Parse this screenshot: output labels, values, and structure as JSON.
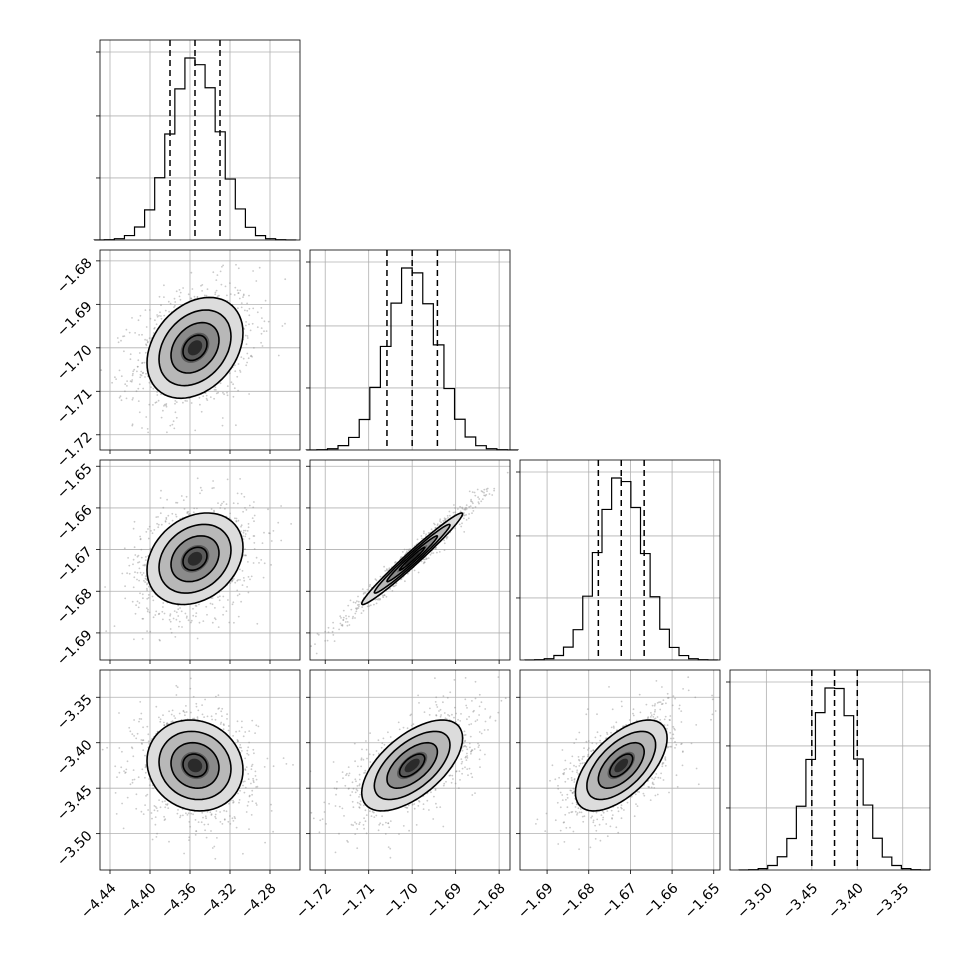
{
  "chart_data": {
    "type": "corner",
    "grid": true,
    "parameters": [
      {
        "ticks": [
          -4.44,
          -4.4,
          -4.36,
          -4.32,
          -4.28
        ],
        "tick_labels": [
          "−4.44",
          "−4.40",
          "−4.36",
          "−4.32",
          "−4.28"
        ],
        "range": [
          -4.45,
          -4.25
        ],
        "mean": -4.355,
        "sigma": 0.024,
        "quantiles": [
          -4.38,
          -4.355,
          -4.33
        ]
      },
      {
        "ticks": [
          -1.72,
          -1.71,
          -1.7,
          -1.69,
          -1.68
        ],
        "tick_labels": [
          "−1.72",
          "−1.71",
          "−1.70",
          "−1.69",
          "−1.68"
        ],
        "range": [
          -1.7235,
          -1.6775
        ],
        "mean": -1.7,
        "sigma": 0.0058,
        "quantiles": [
          -1.7058,
          -1.7,
          -1.6942
        ]
      },
      {
        "ticks": [
          -1.69,
          -1.68,
          -1.67,
          -1.66,
          -1.65
        ],
        "tick_labels": [
          "−1.69",
          "−1.68",
          "−1.67",
          "−1.66",
          "−1.65"
        ],
        "range": [
          -1.6965,
          -1.6485
        ],
        "mean": -1.6722,
        "sigma": 0.0055,
        "quantiles": [
          -1.6777,
          -1.6722,
          -1.6667
        ]
      },
      {
        "ticks": [
          -3.5,
          -3.45,
          -3.4,
          -3.35
        ],
        "tick_labels": [
          "−3.50",
          "−3.45",
          "−3.40",
          "−3.35"
        ],
        "range": [
          -3.54,
          -3.32
        ],
        "mean": -3.425,
        "sigma": 0.025,
        "quantiles": [
          -3.45,
          -3.425,
          -3.4
        ]
      }
    ],
    "correlations": [
      {
        "row": 1,
        "col": 0,
        "rho": 0.3
      },
      {
        "row": 2,
        "col": 0,
        "rho": 0.25
      },
      {
        "row": 2,
        "col": 1,
        "rho": 0.98
      },
      {
        "row": 3,
        "col": 0,
        "rho": -0.1
      },
      {
        "row": 3,
        "col": 1,
        "rho": 0.6
      },
      {
        "row": 3,
        "col": 2,
        "rho": 0.6
      }
    ],
    "histogram_bins": 20,
    "contour_levels_sigma": [
      0.5,
      1.0,
      1.5,
      2.0
    ],
    "colors": {
      "hist": "#000000",
      "points": "#8a8a8a",
      "density_dark": "#1a1a1a",
      "grid": "#b0b0b0"
    }
  }
}
